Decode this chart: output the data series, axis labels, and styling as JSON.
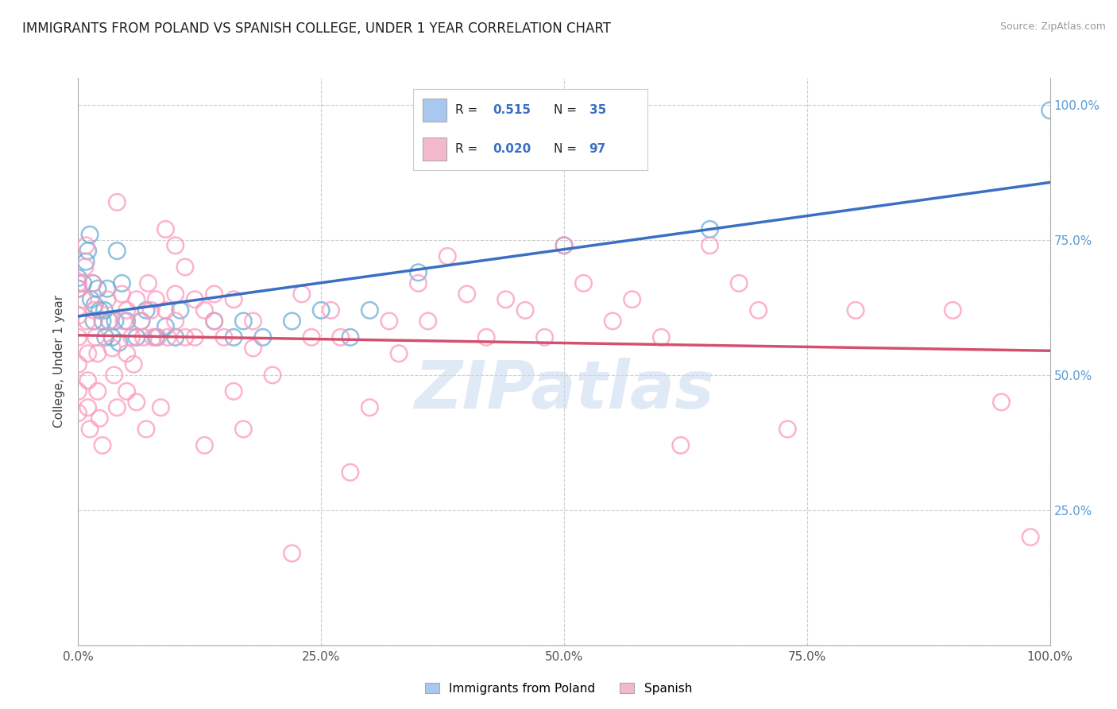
{
  "title": "IMMIGRANTS FROM POLAND VS SPANISH COLLEGE, UNDER 1 YEAR CORRELATION CHART",
  "source": "Source: ZipAtlas.com",
  "ylabel": "College, Under 1 year",
  "xlim": [
    0.0,
    1.0
  ],
  "ylim": [
    0.0,
    1.05
  ],
  "xtick_positions": [
    0.0,
    0.25,
    0.5,
    0.75,
    1.0
  ],
  "ytick_positions": [
    0.0,
    0.25,
    0.5,
    0.75,
    1.0
  ],
  "xtick_labels": [
    "0.0%",
    "25.0%",
    "50.0%",
    "75.0%",
    "100.0%"
  ],
  "ytick_labels": [
    "",
    "25.0%",
    "50.0%",
    "75.0%",
    "100.0%"
  ],
  "legend1_color": "#a8c8f0",
  "legend2_color": "#f4b8cc",
  "blue_color": "#6baed6",
  "pink_color": "#fc9abe",
  "blue_line_color": "#3a6fc4",
  "pink_line_color": "#d45070",
  "tick_color": "#5b9bd5",
  "watermark": "ZIPatlas",
  "blue_points": [
    [
      0.0,
      0.66
    ],
    [
      0.0,
      0.68
    ],
    [
      0.005,
      0.67
    ],
    [
      0.008,
      0.71
    ],
    [
      0.01,
      0.73
    ],
    [
      0.012,
      0.76
    ],
    [
      0.013,
      0.64
    ],
    [
      0.015,
      0.67
    ],
    [
      0.016,
      0.6
    ],
    [
      0.017,
      0.63
    ],
    [
      0.02,
      0.66
    ],
    [
      0.022,
      0.62
    ],
    [
      0.025,
      0.6
    ],
    [
      0.027,
      0.62
    ],
    [
      0.028,
      0.57
    ],
    [
      0.03,
      0.66
    ],
    [
      0.032,
      0.6
    ],
    [
      0.035,
      0.57
    ],
    [
      0.038,
      0.6
    ],
    [
      0.04,
      0.73
    ],
    [
      0.042,
      0.56
    ],
    [
      0.045,
      0.67
    ],
    [
      0.05,
      0.6
    ],
    [
      0.06,
      0.57
    ],
    [
      0.065,
      0.6
    ],
    [
      0.07,
      0.62
    ],
    [
      0.08,
      0.57
    ],
    [
      0.09,
      0.59
    ],
    [
      0.1,
      0.57
    ],
    [
      0.105,
      0.62
    ],
    [
      0.14,
      0.6
    ],
    [
      0.16,
      0.57
    ],
    [
      0.17,
      0.6
    ],
    [
      0.19,
      0.57
    ],
    [
      0.22,
      0.6
    ],
    [
      0.25,
      0.62
    ],
    [
      0.28,
      0.57
    ],
    [
      0.3,
      0.62
    ],
    [
      0.35,
      0.69
    ],
    [
      0.5,
      0.74
    ],
    [
      0.65,
      0.77
    ],
    [
      1.0,
      0.99
    ]
  ],
  "pink_points": [
    [
      0.0,
      0.66
    ],
    [
      0.0,
      0.67
    ],
    [
      0.0,
      0.61
    ],
    [
      0.0,
      0.57
    ],
    [
      0.0,
      0.52
    ],
    [
      0.0,
      0.47
    ],
    [
      0.0,
      0.43
    ],
    [
      0.005,
      0.64
    ],
    [
      0.007,
      0.7
    ],
    [
      0.008,
      0.74
    ],
    [
      0.009,
      0.6
    ],
    [
      0.01,
      0.54
    ],
    [
      0.01,
      0.49
    ],
    [
      0.01,
      0.44
    ],
    [
      0.012,
      0.4
    ],
    [
      0.015,
      0.67
    ],
    [
      0.016,
      0.62
    ],
    [
      0.018,
      0.57
    ],
    [
      0.02,
      0.54
    ],
    [
      0.02,
      0.47
    ],
    [
      0.022,
      0.42
    ],
    [
      0.025,
      0.37
    ],
    [
      0.03,
      0.64
    ],
    [
      0.032,
      0.6
    ],
    [
      0.035,
      0.55
    ],
    [
      0.037,
      0.5
    ],
    [
      0.04,
      0.44
    ],
    [
      0.04,
      0.82
    ],
    [
      0.045,
      0.65
    ],
    [
      0.047,
      0.6
    ],
    [
      0.05,
      0.54
    ],
    [
      0.05,
      0.47
    ],
    [
      0.05,
      0.62
    ],
    [
      0.055,
      0.57
    ],
    [
      0.057,
      0.52
    ],
    [
      0.06,
      0.45
    ],
    [
      0.06,
      0.64
    ],
    [
      0.065,
      0.6
    ],
    [
      0.067,
      0.57
    ],
    [
      0.07,
      0.4
    ],
    [
      0.072,
      0.67
    ],
    [
      0.075,
      0.62
    ],
    [
      0.077,
      0.57
    ],
    [
      0.08,
      0.64
    ],
    [
      0.082,
      0.57
    ],
    [
      0.085,
      0.44
    ],
    [
      0.09,
      0.62
    ],
    [
      0.092,
      0.57
    ],
    [
      0.09,
      0.77
    ],
    [
      0.1,
      0.74
    ],
    [
      0.1,
      0.65
    ],
    [
      0.1,
      0.6
    ],
    [
      0.11,
      0.7
    ],
    [
      0.11,
      0.57
    ],
    [
      0.12,
      0.64
    ],
    [
      0.12,
      0.57
    ],
    [
      0.13,
      0.62
    ],
    [
      0.13,
      0.37
    ],
    [
      0.14,
      0.65
    ],
    [
      0.14,
      0.6
    ],
    [
      0.15,
      0.57
    ],
    [
      0.16,
      0.64
    ],
    [
      0.16,
      0.47
    ],
    [
      0.17,
      0.4
    ],
    [
      0.18,
      0.6
    ],
    [
      0.18,
      0.55
    ],
    [
      0.2,
      0.5
    ],
    [
      0.22,
      0.17
    ],
    [
      0.23,
      0.65
    ],
    [
      0.24,
      0.57
    ],
    [
      0.26,
      0.62
    ],
    [
      0.27,
      0.57
    ],
    [
      0.28,
      0.32
    ],
    [
      0.3,
      0.44
    ],
    [
      0.32,
      0.6
    ],
    [
      0.33,
      0.54
    ],
    [
      0.35,
      0.67
    ],
    [
      0.36,
      0.6
    ],
    [
      0.38,
      0.72
    ],
    [
      0.4,
      0.65
    ],
    [
      0.42,
      0.57
    ],
    [
      0.44,
      0.64
    ],
    [
      0.46,
      0.62
    ],
    [
      0.48,
      0.57
    ],
    [
      0.5,
      0.74
    ],
    [
      0.52,
      0.67
    ],
    [
      0.55,
      0.6
    ],
    [
      0.57,
      0.64
    ],
    [
      0.6,
      0.57
    ],
    [
      0.62,
      0.37
    ],
    [
      0.65,
      0.74
    ],
    [
      0.68,
      0.67
    ],
    [
      0.7,
      0.62
    ],
    [
      0.73,
      0.4
    ],
    [
      0.8,
      0.62
    ],
    [
      0.9,
      0.62
    ],
    [
      0.95,
      0.45
    ],
    [
      0.98,
      0.2
    ]
  ],
  "background_color": "#ffffff",
  "grid_color": "#cccccc",
  "title_fontsize": 12,
  "axis_fontsize": 11,
  "tick_fontsize": 11
}
